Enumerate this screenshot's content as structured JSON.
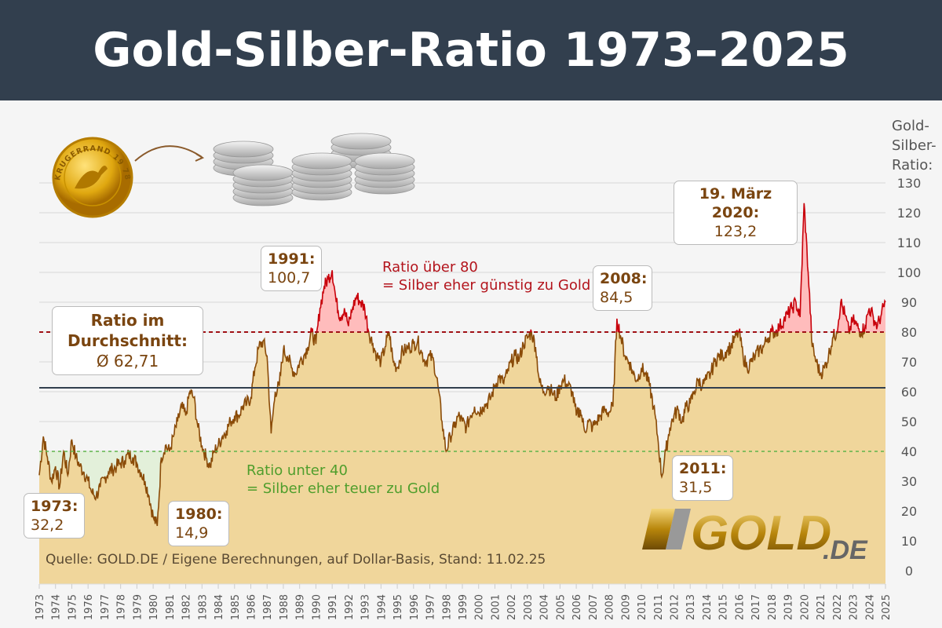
{
  "title": "Gold-Silber-Ratio 1973–2025",
  "chart_data": {
    "type": "area",
    "title": "Gold-Silber-Ratio 1973–2025",
    "ylabel": "Gold-Silber-Ratio:",
    "ylim": [
      0,
      130
    ],
    "yticks": [
      0,
      10,
      20,
      30,
      40,
      50,
      60,
      70,
      80,
      90,
      100,
      110,
      120,
      130
    ],
    "xlim": [
      1973,
      2025.1
    ],
    "xticks": [
      1973,
      1974,
      1975,
      1976,
      1977,
      1978,
      1979,
      1980,
      1981,
      1982,
      1983,
      1984,
      1985,
      1986,
      1987,
      1988,
      1989,
      1990,
      1991,
      1992,
      1993,
      1994,
      1995,
      1996,
      1997,
      1998,
      1999,
      2000,
      2001,
      2002,
      2003,
      2004,
      2005,
      2006,
      2007,
      2008,
      2009,
      2010,
      2011,
      2012,
      2013,
      2014,
      2015,
      2016,
      2017,
      2018,
      2019,
      2020,
      2021,
      2022,
      2023,
      2024,
      2025
    ],
    "grid": true,
    "series_quarterly_from_1973": [
      32,
      45,
      38,
      30,
      35,
      28,
      40,
      32,
      44,
      38,
      35,
      33,
      30,
      26,
      25,
      28,
      31,
      33,
      34,
      35,
      36,
      37,
      39,
      38,
      36,
      33,
      30,
      25,
      18,
      15,
      38,
      42,
      40,
      45,
      50,
      55,
      52,
      60,
      58,
      48,
      42,
      38,
      35,
      40,
      42,
      45,
      47,
      50,
      52,
      52,
      55,
      56,
      58,
      68,
      75,
      77,
      72,
      46,
      60,
      62,
      74,
      72,
      68,
      66,
      70,
      72,
      75,
      80,
      76,
      88,
      95,
      98,
      100.7,
      90,
      85,
      88,
      82,
      88,
      92,
      90,
      88,
      80,
      76,
      72,
      70,
      75,
      80,
      70,
      68,
      73,
      74,
      75,
      76,
      77,
      73,
      70,
      72,
      70,
      62,
      50,
      40,
      45,
      48,
      52,
      50,
      48,
      52,
      55,
      53,
      55,
      56,
      58,
      62,
      65,
      63,
      66,
      70,
      72,
      71,
      76,
      78,
      80,
      75,
      63,
      60,
      62,
      60,
      58,
      62,
      64,
      62,
      60,
      52,
      54,
      47,
      50,
      48,
      50,
      52,
      54,
      53,
      55,
      84.5,
      78,
      72,
      70,
      66,
      64,
      68,
      66,
      62,
      55,
      45,
      31.5,
      40,
      48,
      52,
      54,
      50,
      55,
      56,
      60,
      64,
      62,
      64,
      66,
      70,
      72,
      72,
      74,
      75,
      78,
      80,
      72,
      68,
      70,
      72,
      74,
      75,
      78,
      80,
      80,
      82,
      84,
      86,
      88,
      90,
      85,
      123.2,
      100,
      75,
      70,
      66,
      68,
      72,
      78,
      80,
      90,
      86,
      80,
      84,
      82,
      80,
      82,
      88,
      85,
      82,
      86,
      90
    ],
    "reference_lines": {
      "average": 62.71,
      "upper": 80,
      "lower": 40
    },
    "annotations": [
      {
        "title": "19. März 2020:",
        "value": "123,2"
      },
      {
        "title": "1991:",
        "value": "100,7"
      },
      {
        "title": "2008:",
        "value": "84,5"
      },
      {
        "title": "Ratio im Durchschnitt:",
        "value": "Ø 62,71"
      },
      {
        "title": "1973:",
        "value": "32,2"
      },
      {
        "title": "1980:",
        "value": "14,9"
      },
      {
        "title": "2011:",
        "value": "31,5"
      }
    ],
    "upper_note": [
      "Ratio über 80",
      "= Silber eher günstig zu Gold"
    ],
    "lower_note": [
      "Ratio unter 40",
      "= Silber eher teuer zu Gold"
    ],
    "colors": {
      "fill": "#f0d69b",
      "line": "#8a4b08",
      "above": "#c8000a",
      "above_fill": "#ffbcbc",
      "below_fill": "#e3f0da",
      "lower_line": "#5fb34a",
      "average_line": "#323f4e"
    }
  },
  "source": "Quelle: GOLD.DE / Eigene Berechnungen, auf Dollar-Basis, Stand: 11.02.25",
  "logo": "GOLD.DE",
  "coin_text": "KRUGERRAND 19 78"
}
